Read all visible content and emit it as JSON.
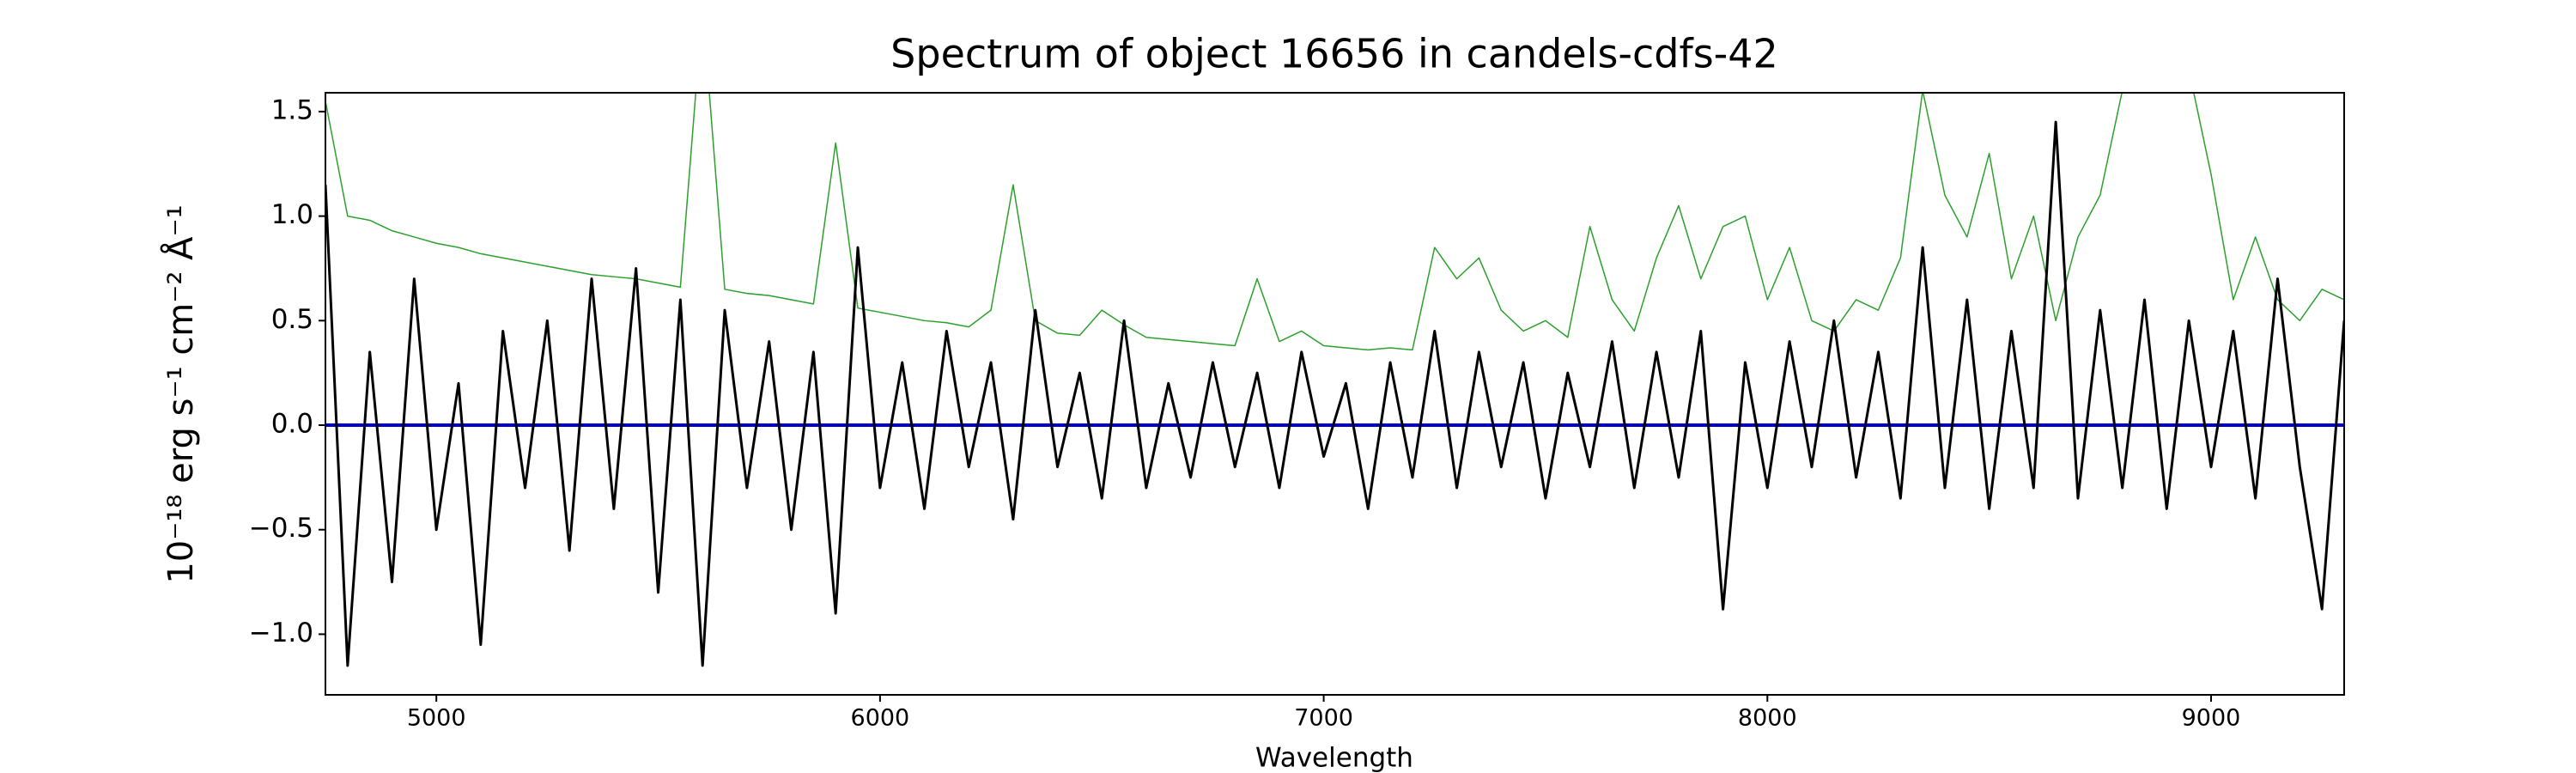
{
  "chart_data": {
    "type": "line",
    "title": "Spectrum of object 16656 in candels-cdfs-42",
    "xlabel": "Wavelength",
    "ylabel": "10⁻¹⁸ erg s⁻¹ cm⁻² Å⁻¹",
    "grid": false,
    "xlim": [
      4750,
      9300
    ],
    "ylim": [
      -1.29,
      1.59
    ],
    "xticks": [
      5000,
      6000,
      7000,
      8000,
      9000
    ],
    "yticks": [
      {
        "value": -1.0,
        "label": "−1.0"
      },
      {
        "value": -0.5,
        "label": "−0.5"
      },
      {
        "value": 0.0,
        "label": "0.0"
      },
      {
        "value": 0.5,
        "label": "0.5"
      },
      {
        "value": 1.0,
        "label": "1.0"
      },
      {
        "value": 1.5,
        "label": "1.5"
      }
    ],
    "x": [
      4750,
      4800,
      4850,
      4900,
      4950,
      5000,
      5050,
      5100,
      5150,
      5200,
      5250,
      5300,
      5350,
      5400,
      5450,
      5500,
      5550,
      5600,
      5650,
      5700,
      5750,
      5800,
      5850,
      5900,
      5950,
      6000,
      6050,
      6100,
      6150,
      6200,
      6250,
      6300,
      6350,
      6400,
      6450,
      6500,
      6550,
      6600,
      6650,
      6700,
      6750,
      6800,
      6850,
      6900,
      6950,
      7000,
      7050,
      7100,
      7150,
      7200,
      7250,
      7300,
      7350,
      7400,
      7450,
      7500,
      7550,
      7600,
      7650,
      7700,
      7750,
      7800,
      7850,
      7900,
      7950,
      8000,
      8050,
      8100,
      8150,
      8200,
      8250,
      8300,
      8350,
      8400,
      8450,
      8500,
      8550,
      8600,
      8650,
      8700,
      8750,
      8800,
      8850,
      8900,
      8950,
      9000,
      9050,
      9100,
      9150,
      9200,
      9250,
      9300
    ],
    "series": [
      {
        "color": "#2ca02c",
        "width": 1.5,
        "values": [
          1.55,
          1.0,
          0.98,
          0.93,
          0.9,
          0.87,
          0.85,
          0.82,
          0.8,
          0.78,
          0.76,
          0.74,
          0.72,
          0.71,
          0.7,
          0.68,
          0.66,
          2.0,
          0.65,
          0.63,
          0.62,
          0.6,
          0.58,
          1.35,
          0.56,
          0.54,
          0.52,
          0.5,
          0.49,
          0.47,
          0.55,
          1.15,
          0.5,
          0.44,
          0.43,
          0.55,
          0.48,
          0.42,
          0.41,
          0.4,
          0.39,
          0.38,
          0.7,
          0.4,
          0.45,
          0.38,
          0.37,
          0.36,
          0.37,
          0.36,
          0.85,
          0.7,
          0.8,
          0.55,
          0.45,
          0.5,
          0.42,
          0.95,
          0.6,
          0.45,
          0.8,
          1.05,
          0.7,
          0.95,
          1.0,
          0.6,
          0.85,
          0.5,
          0.45,
          0.6,
          0.55,
          0.8,
          1.6,
          1.1,
          0.9,
          1.3,
          0.7,
          1.0,
          0.5,
          0.9,
          1.1,
          1.6,
          1.8,
          2.0,
          1.7,
          1.2,
          0.6,
          0.9,
          0.6,
          0.5,
          0.65,
          0.6
        ]
      },
      {
        "color": "#0000cc",
        "width": 4,
        "values": [
          0,
          0,
          0,
          0,
          0,
          0,
          0,
          0,
          0,
          0,
          0,
          0,
          0,
          0,
          0,
          0,
          0,
          0,
          0,
          0,
          0,
          0,
          0,
          0,
          0,
          0,
          0,
          0,
          0,
          0,
          0,
          0,
          0,
          0,
          0,
          0,
          0,
          0,
          0,
          0,
          0,
          0,
          0,
          0,
          0,
          0,
          0,
          0,
          0,
          0,
          0,
          0,
          0,
          0,
          0,
          0,
          0,
          0,
          0,
          0,
          0,
          0,
          0,
          0,
          0,
          0,
          0,
          0,
          0,
          0,
          0,
          0,
          0,
          0,
          0,
          0,
          0,
          0,
          0,
          0,
          0,
          0,
          0,
          0,
          0,
          0,
          0,
          0,
          0,
          0,
          0,
          0
        ]
      },
      {
        "color": "#000000",
        "width": 3,
        "values": [
          1.15,
          -1.15,
          0.35,
          -0.75,
          0.7,
          -0.5,
          0.2,
          -1.05,
          0.45,
          -0.3,
          0.5,
          -0.6,
          0.7,
          -0.4,
          0.75,
          -0.8,
          0.6,
          -1.15,
          0.55,
          -0.3,
          0.4,
          -0.5,
          0.35,
          -0.9,
          0.85,
          -0.3,
          0.3,
          -0.4,
          0.45,
          -0.2,
          0.3,
          -0.45,
          0.55,
          -0.2,
          0.25,
          -0.35,
          0.5,
          -0.3,
          0.2,
          -0.25,
          0.3,
          -0.2,
          0.25,
          -0.3,
          0.35,
          -0.15,
          0.2,
          -0.4,
          0.3,
          -0.25,
          0.45,
          -0.3,
          0.35,
          -0.2,
          0.3,
          -0.35,
          0.25,
          -0.2,
          0.4,
          -0.3,
          0.35,
          -0.25,
          0.45,
          -0.88,
          0.3,
          -0.3,
          0.4,
          -0.2,
          0.5,
          -0.25,
          0.35,
          -0.35,
          0.85,
          -0.3,
          0.6,
          -0.4,
          0.45,
          -0.3,
          1.45,
          -0.35,
          0.55,
          -0.3,
          0.6,
          -0.4,
          0.5,
          -0.2,
          0.45,
          -0.35,
          0.7,
          -0.2,
          -0.88,
          0.5
        ]
      }
    ]
  }
}
